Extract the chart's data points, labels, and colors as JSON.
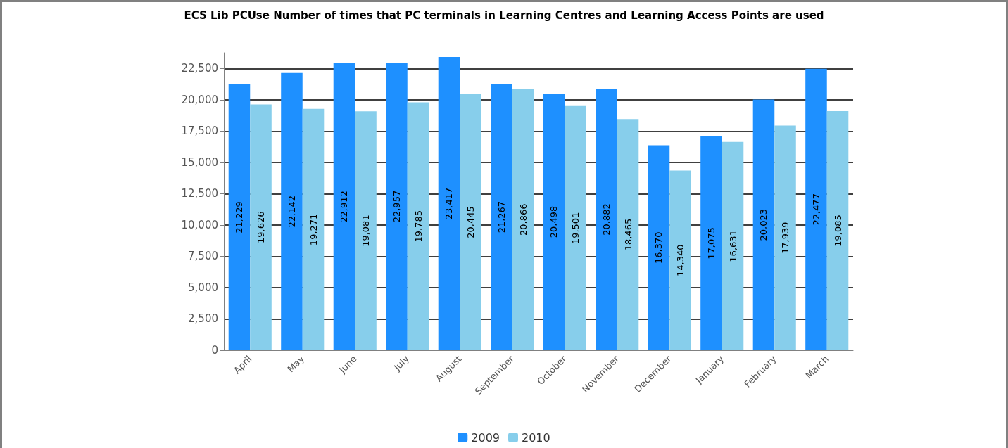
{
  "chart_data": {
    "type": "bar",
    "title": "ECS Lib PCUse Number of times that PC terminals in Learning Centres and Learning Access Points are used",
    "categories": [
      "April",
      "May",
      "June",
      "July",
      "August",
      "September",
      "October",
      "November",
      "December",
      "January",
      "February",
      "March"
    ],
    "series": [
      {
        "name": "2009",
        "color": "#1e90ff",
        "values": [
          21229,
          22142,
          22912,
          22957,
          23417,
          21267,
          20498,
          20882,
          16370,
          17075,
          20023,
          22477
        ],
        "value_labels": [
          "21,229",
          "22,142",
          "22,912",
          "22,957",
          "23,417",
          "21,267",
          "20,498",
          "20,882",
          "16,370",
          "17,075",
          "20,023",
          "22,477"
        ]
      },
      {
        "name": "2010",
        "color": "#87ceeb",
        "values": [
          19626,
          19271,
          19081,
          19785,
          20445,
          20866,
          19501,
          18465,
          14340,
          16631,
          17939,
          19085
        ],
        "value_labels": [
          "19,626",
          "19,271",
          "19,081",
          "19,785",
          "20,445",
          "20,866",
          "19,501",
          "18,465",
          "14,340",
          "16,631",
          "17,939",
          "19,085"
        ]
      }
    ],
    "ylim": [
      0,
      23750
    ],
    "yticks": [
      0,
      {
        "value": 2500,
        "label": "2,500"
      },
      {
        "value": 5000,
        "label": "5,000"
      },
      {
        "value": 7500,
        "label": "7,500"
      },
      {
        "value": 10000,
        "label": "10,000"
      },
      {
        "value": 12500,
        "label": "12,500"
      },
      {
        "value": 15000,
        "label": "15,000"
      },
      {
        "value": 17500,
        "label": "17,500"
      },
      {
        "value": 20000,
        "label": "20,000"
      },
      {
        "value": 22500,
        "label": "22,500"
      }
    ],
    "grid": "y",
    "legend": "bottom"
  }
}
